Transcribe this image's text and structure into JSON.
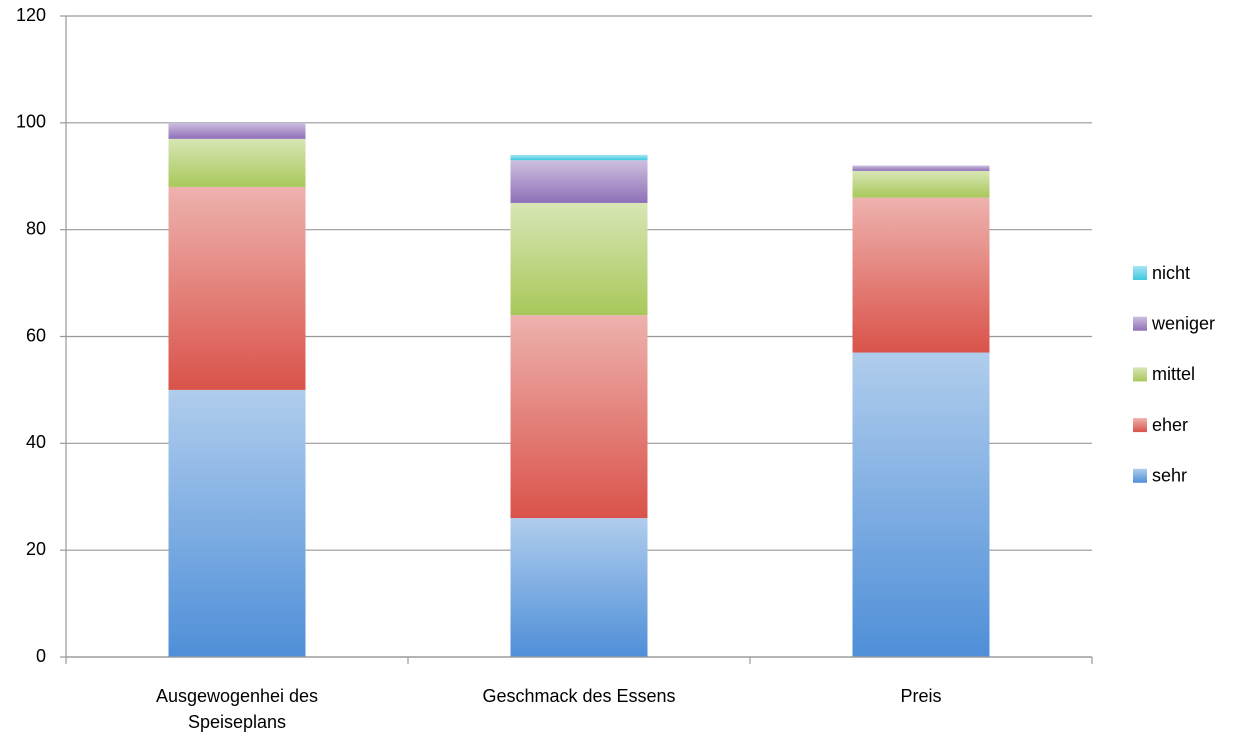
{
  "chart_data": {
    "type": "stacked_bar",
    "categories": [
      "Ausgewogenhei des Speiseplans",
      "Geschmack des Essens",
      "Preis"
    ],
    "series": [
      {
        "name": "sehr",
        "color": "#4f8fd8",
        "values": [
          50,
          26,
          57
        ]
      },
      {
        "name": "eher",
        "color": "#d9534a",
        "values": [
          38,
          38,
          29
        ]
      },
      {
        "name": "mittel",
        "color": "#a8c85a",
        "values": [
          9,
          21,
          5
        ]
      },
      {
        "name": "weniger",
        "color": "#8f70b8",
        "values": [
          3,
          8,
          1
        ]
      },
      {
        "name": "nicht",
        "color": "#3cc8e0",
        "values": [
          0,
          1,
          0
        ]
      }
    ],
    "ylim": [
      0,
      120
    ],
    "yticks": [
      0,
      20,
      40,
      60,
      80,
      100,
      120
    ],
    "grid": true,
    "legend": "right"
  }
}
